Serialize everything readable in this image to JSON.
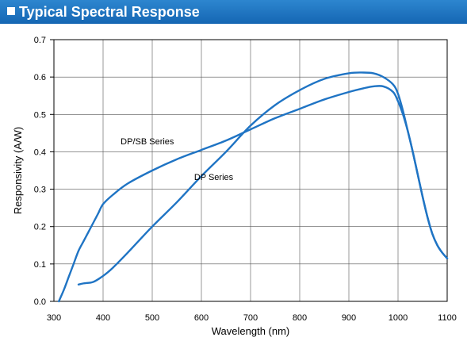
{
  "header": {
    "title": "Typical Spectral Response"
  },
  "chart_data": {
    "type": "line",
    "title": "Typical Spectral Response",
    "xlabel": "Wavelength (nm)",
    "ylabel": "Responsivity (A/W)",
    "xlim": [
      300,
      1100
    ],
    "ylim": [
      0,
      0.7
    ],
    "x_ticks": [
      "300",
      "400",
      "500",
      "600",
      "700",
      "800",
      "900",
      "1000",
      "1100"
    ],
    "y_ticks": [
      "0.0",
      "0.1",
      "0.2",
      "0.3",
      "0.4",
      "0.5",
      "0.6",
      "0.7"
    ],
    "grid": true,
    "line_color": "#1f74c4",
    "series": [
      {
        "name": "DP/SB Series",
        "x": [
          310,
          320,
          330,
          340,
          350,
          360,
          370,
          380,
          390,
          400,
          420,
          450,
          500,
          550,
          600,
          650,
          700,
          750,
          800,
          850,
          900,
          930,
          950,
          970,
          990,
          1000,
          1010,
          1020,
          1030,
          1040,
          1050,
          1060,
          1070,
          1080,
          1090,
          1100
        ],
        "y": [
          0.0,
          0.03,
          0.065,
          0.1,
          0.135,
          0.16,
          0.185,
          0.21,
          0.235,
          0.26,
          0.285,
          0.315,
          0.35,
          0.38,
          0.405,
          0.43,
          0.46,
          0.49,
          0.515,
          0.54,
          0.56,
          0.57,
          0.575,
          0.575,
          0.56,
          0.535,
          0.5,
          0.455,
          0.4,
          0.34,
          0.28,
          0.225,
          0.18,
          0.15,
          0.13,
          0.115
        ]
      },
      {
        "name": "DP Series",
        "x": [
          350,
          360,
          380,
          400,
          420,
          450,
          500,
          550,
          600,
          650,
          700,
          750,
          800,
          850,
          900,
          930,
          950,
          970,
          990,
          1000,
          1010,
          1020,
          1030,
          1040,
          1050,
          1060,
          1070,
          1080,
          1090,
          1100
        ],
        "y": [
          0.045,
          0.048,
          0.052,
          0.068,
          0.09,
          0.13,
          0.2,
          0.265,
          0.335,
          0.4,
          0.47,
          0.525,
          0.565,
          0.595,
          0.61,
          0.612,
          0.61,
          0.6,
          0.58,
          0.555,
          0.51,
          0.455,
          0.4,
          0.34,
          0.28,
          0.225,
          0.18,
          0.15,
          0.13,
          0.115
        ]
      }
    ],
    "annotations": [
      {
        "text": "DP/SB Series",
        "x": 490,
        "y": 0.42
      },
      {
        "text": "DP Series",
        "x": 625,
        "y": 0.325
      }
    ]
  }
}
